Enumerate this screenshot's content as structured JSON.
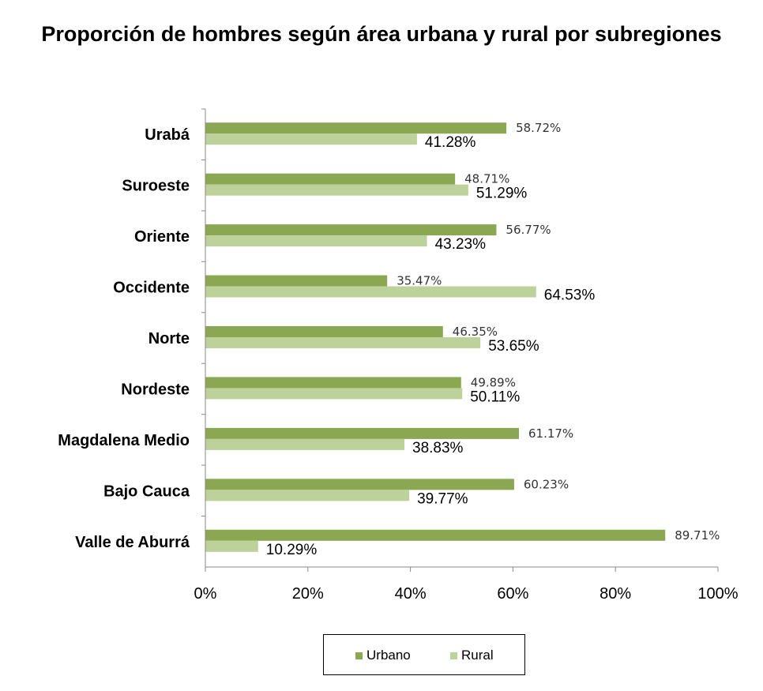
{
  "chart_data": {
    "type": "bar",
    "orientation": "horizontal",
    "title": "Proporción de hombres según área urbana y rural por subregiones",
    "categories": [
      "Urabá",
      "Suroeste",
      "Oriente",
      "Occidente",
      "Norte",
      "Nordeste",
      "Magdalena Medio",
      "Bajo Cauca",
      "Valle de Aburrá"
    ],
    "series": [
      {
        "name": "Urbano",
        "color": "#8BA752",
        "values": [
          58.72,
          48.71,
          56.77,
          35.47,
          46.35,
          49.89,
          61.17,
          60.23,
          89.71
        ],
        "labels": [
          "58.72%",
          "48.71%",
          "56.77%",
          "35.47%",
          "46.35%",
          "49.89%",
          "61.17%",
          "60.23%",
          "89.71%"
        ]
      },
      {
        "name": "Rural",
        "color": "#BDD19A",
        "values": [
          41.28,
          51.29,
          43.23,
          64.53,
          53.65,
          50.11,
          38.83,
          39.77,
          10.29
        ],
        "labels": [
          "41.28%",
          "51.29%",
          "43.23%",
          "64.53%",
          "53.65%",
          "50.11%",
          "38.83%",
          "39.77%",
          "10.29%"
        ]
      }
    ],
    "xlim": [
      0,
      100
    ],
    "xticks": [
      "0%",
      "20%",
      "40%",
      "60%",
      "80%",
      "100%"
    ],
    "grid": false,
    "legend": "bottom"
  },
  "legend": {
    "urbano_label": "Urbano",
    "rural_label": "Rural"
  }
}
